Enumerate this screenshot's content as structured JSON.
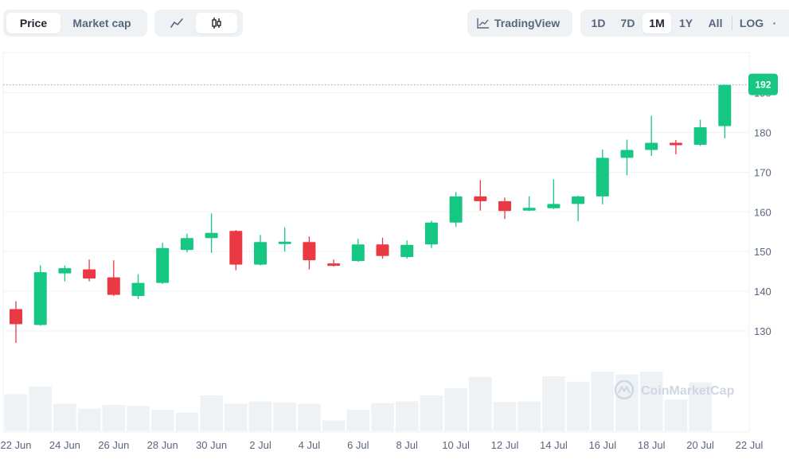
{
  "toolbar": {
    "metric_tabs": [
      {
        "label": "Price",
        "active": true
      },
      {
        "label": "Market cap",
        "active": false
      }
    ],
    "chart_type_icons": [
      "line-chart-icon",
      "candlestick-icon"
    ],
    "active_chart_type": "candlestick-icon",
    "tradingview_label": "TradingView",
    "ranges": [
      {
        "label": "1D",
        "active": false
      },
      {
        "label": "7D",
        "active": false
      },
      {
        "label": "1M",
        "active": true
      },
      {
        "label": "1Y",
        "active": false
      },
      {
        "label": "All",
        "active": false
      }
    ],
    "log_label": "LOG",
    "more_label": "·"
  },
  "watermark": "CoinMarketCap",
  "colors": {
    "up": "#16c784",
    "down": "#ea3943",
    "volume": "#eff2f5",
    "grid": "#eff2f5",
    "text_muted": "#58667e"
  },
  "chart_data": {
    "type": "candlestick",
    "current_price_label": "192",
    "current_price": 192,
    "ylim": [
      118,
      200
    ],
    "y_ticks": [
      130,
      140,
      150,
      160,
      170,
      180,
      190
    ],
    "x_ticks": [
      "22 Jun",
      "24 Jun",
      "26 Jun",
      "28 Jun",
      "30 Jun",
      "2 Jul",
      "4 Jul",
      "6 Jul",
      "8 Jul",
      "10 Jul",
      "12 Jul",
      "14 Jul",
      "16 Jul",
      "18 Jul",
      "20 Jul",
      "22 Jul"
    ],
    "candles": [
      {
        "date": "22 Jun",
        "open": 135.5,
        "high": 137.5,
        "low": 127,
        "close": 131.7
      },
      {
        "date": "23 Jun",
        "open": 131.5,
        "high": 146.5,
        "low": 131.3,
        "close": 144.8
      },
      {
        "date": "24 Jun",
        "open": 144.5,
        "high": 146.5,
        "low": 142.5,
        "close": 145.8
      },
      {
        "date": "25 Jun",
        "open": 145.5,
        "high": 148,
        "low": 142.5,
        "close": 143.2
      },
      {
        "date": "26 Jun",
        "open": 143.5,
        "high": 147.8,
        "low": 138.8,
        "close": 139.1
      },
      {
        "date": "27 Jun",
        "open": 138.8,
        "high": 144.3,
        "low": 138,
        "close": 142.1
      },
      {
        "date": "28 Jun",
        "open": 142.1,
        "high": 152.2,
        "low": 141.8,
        "close": 150.9
      },
      {
        "date": "29 Jun",
        "open": 150.4,
        "high": 154.5,
        "low": 149.8,
        "close": 153.4
      },
      {
        "date": "30 Jun",
        "open": 153.4,
        "high": 159.6,
        "low": 149.7,
        "close": 154.7
      },
      {
        "date": "1 Jul",
        "open": 155.2,
        "high": 155.4,
        "low": 145.3,
        "close": 146.7
      },
      {
        "date": "2 Jul",
        "open": 146.7,
        "high": 154.2,
        "low": 146.5,
        "close": 152.4
      },
      {
        "date": "3 Jul",
        "open": 152.2,
        "high": 156.1,
        "low": 150,
        "close": 152.5
      },
      {
        "date": "4 Jul",
        "open": 152.4,
        "high": 153.8,
        "low": 145.5,
        "close": 147.8
      },
      {
        "date": "5 Jul",
        "open": 147,
        "high": 148,
        "low": 146.2,
        "close": 146.7
      },
      {
        "date": "6 Jul",
        "open": 147.6,
        "high": 153.2,
        "low": 147.4,
        "close": 151.8
      },
      {
        "date": "7 Jul",
        "open": 151.8,
        "high": 153.5,
        "low": 148.2,
        "close": 148.9
      },
      {
        "date": "8 Jul",
        "open": 148.6,
        "high": 152.8,
        "low": 148.2,
        "close": 151.7
      },
      {
        "date": "9 Jul",
        "open": 151.8,
        "high": 157.8,
        "low": 150.9,
        "close": 157.3
      },
      {
        "date": "10 Jul",
        "open": 157.3,
        "high": 165,
        "low": 156.2,
        "close": 163.9
      },
      {
        "date": "11 Jul",
        "open": 163.9,
        "high": 168,
        "low": 160.3,
        "close": 162.7
      },
      {
        "date": "12 Jul",
        "open": 162.7,
        "high": 163.6,
        "low": 158.2,
        "close": 160.2
      },
      {
        "date": "13 Jul",
        "open": 160.3,
        "high": 163.9,
        "low": 160.2,
        "close": 161
      },
      {
        "date": "14 Jul",
        "open": 160.9,
        "high": 168.2,
        "low": 160.7,
        "close": 162
      },
      {
        "date": "15 Jul",
        "open": 162,
        "high": 164.1,
        "low": 157.6,
        "close": 163.9
      },
      {
        "date": "16 Jul",
        "open": 163.9,
        "high": 175.7,
        "low": 161.9,
        "close": 173.6
      },
      {
        "date": "17 Jul",
        "open": 173.6,
        "high": 178.2,
        "low": 169.2,
        "close": 175.6
      },
      {
        "date": "18 Jul",
        "open": 175.6,
        "high": 184.2,
        "low": 174.1,
        "close": 177.4
      },
      {
        "date": "19 Jul",
        "open": 177.4,
        "high": 178.1,
        "low": 174.5,
        "close": 177.0
      },
      {
        "date": "20 Jul",
        "open": 176.9,
        "high": 183.2,
        "low": 176.6,
        "close": 181.3
      },
      {
        "date": "21 Jul",
        "open": 181.6,
        "high": 192,
        "low": 178.5,
        "close": 192
      }
    ],
    "volume_relative": [
      0.62,
      0.75,
      0.46,
      0.38,
      0.44,
      0.42,
      0.36,
      0.31,
      0.6,
      0.46,
      0.5,
      0.48,
      0.46,
      0.18,
      0.36,
      0.47,
      0.5,
      0.6,
      0.72,
      0.91,
      0.49,
      0.5,
      0.92,
      0.83,
      1.0,
      0.95,
      1.0,
      0.53,
      0.82,
      0.0
    ]
  }
}
